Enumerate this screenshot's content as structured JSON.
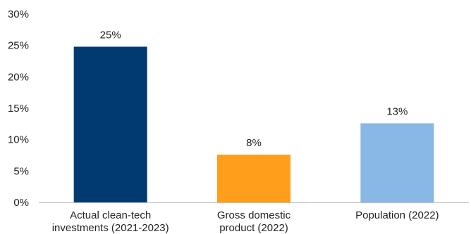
{
  "chart_data": {
    "type": "bar",
    "categories": [
      [
        "Actual clean-tech",
        "investments (2021-2023)"
      ],
      [
        "Gross domestic",
        "product (2022)"
      ],
      [
        "Population (2022)"
      ]
    ],
    "values": [
      24.8,
      7.6,
      12.6
    ],
    "data_labels": [
      "25%",
      "8%",
      "13%"
    ],
    "colors": [
      "#003a70",
      "#ff9e1b",
      "#8ab8e6"
    ],
    "ylim": [
      0,
      30
    ],
    "yticks": [
      0,
      5,
      10,
      15,
      20,
      25,
      30
    ],
    "ytick_labels": [
      "0%",
      "5%",
      "10%",
      "15%",
      "20%",
      "25%",
      "30%"
    ],
    "grid": false,
    "legend": "none",
    "title": "",
    "xlabel": "",
    "ylabel": ""
  }
}
